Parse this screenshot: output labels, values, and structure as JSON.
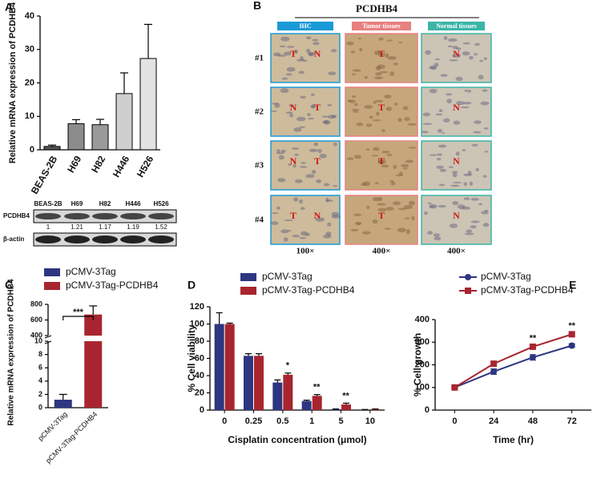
{
  "chart_data": [
    {
      "type": "bar",
      "panel": "A",
      "ylabel": "Relative mRNA expression of PCDHB4",
      "categories": [
        "BEAS-2B",
        "H69",
        "H82",
        "H446",
        "H526"
      ],
      "values": [
        1,
        7.8,
        7.5,
        16.8,
        27.3
      ],
      "errors": [
        0.4,
        1.2,
        1.6,
        6.2,
        10.2
      ],
      "colors": [
        "#555555",
        "#8c8c8c",
        "#9a9a9a",
        "#cfcfcf",
        "#e2e2e2"
      ],
      "ylim": [
        0,
        40
      ],
      "yticks": [
        0,
        10,
        20,
        30,
        40
      ]
    },
    {
      "type": "broken_bar",
      "panel": "C",
      "ylabel": "Relative mRNA expression of PCDHB4",
      "categories": [
        "pCMV-3Tag",
        "pCMV-3Tag-PCDHB4"
      ],
      "series": [
        {
          "name": "pCMV-3Tag",
          "color": "#2e3581",
          "values": [
            1.2,
            null
          ],
          "errors": [
            0.8,
            null
          ]
        },
        {
          "name": "pCMV-3Tag-PCDHB4",
          "color": "#a8252f",
          "values": [
            null,
            670
          ],
          "errors": [
            null,
            110
          ]
        }
      ],
      "segments": [
        {
          "ylim": [
            0,
            10
          ],
          "yticks": [
            0,
            2,
            4,
            6,
            8,
            10
          ]
        },
        {
          "ylim": [
            400,
            800
          ],
          "yticks": [
            400,
            600,
            800
          ]
        }
      ],
      "annotation": "***"
    },
    {
      "type": "grouped_bar",
      "panel": "D",
      "ylabel": "% Cell viability",
      "xlabel": "Cisplatin concentration (μmol)",
      "categories": [
        "0",
        "0.25",
        "0.5",
        "1",
        "5",
        "10"
      ],
      "series": [
        {
          "name": "pCMV-3Tag",
          "color": "#2e3581",
          "values": [
            100,
            63,
            32,
            10.5,
            1,
            0.5
          ],
          "errors": [
            13,
            2.5,
            3,
            1,
            0.3,
            0.2
          ]
        },
        {
          "name": "pCMV-3Tag-PCDHB4",
          "color": "#a8252f",
          "values": [
            100,
            63,
            41,
            16.5,
            6.5,
            1
          ],
          "errors": [
            1,
            2.5,
            2,
            1.5,
            1.5,
            0.3
          ]
        }
      ],
      "annotations": [
        {
          "text": "*",
          "category": "0.5"
        },
        {
          "text": "**",
          "category": "1"
        },
        {
          "text": "**",
          "category": "5"
        }
      ],
      "ylim": [
        0,
        120
      ],
      "yticks": [
        0,
        20,
        40,
        60,
        80,
        100,
        120
      ]
    },
    {
      "type": "line",
      "panel": "E",
      "ylabel": "% Cell growth",
      "xlabel": "Time (hr)",
      "x": [
        0,
        24,
        48,
        72
      ],
      "series": [
        {
          "name": "pCMV-3Tag",
          "color": "#2e3581",
          "marker": "circle",
          "values": [
            100,
            170,
            233,
            285
          ],
          "errors": [
            3,
            12,
            12,
            8
          ]
        },
        {
          "name": "pCMV-3Tag-PCDHB4",
          "color": "#a8252f",
          "marker": "square",
          "values": [
            100,
            205,
            280,
            335
          ],
          "errors": [
            3,
            10,
            5,
            5
          ]
        }
      ],
      "annotations": [
        {
          "text": "**",
          "x": 48
        },
        {
          "text": "**",
          "x": 72
        }
      ],
      "xlim": [
        -12,
        84
      ],
      "xticks": [
        0,
        24,
        48,
        72
      ],
      "ylim": [
        0,
        400
      ],
      "yticks": [
        0,
        100,
        200,
        300,
        400
      ]
    }
  ],
  "western_blot": {
    "lanes": [
      "BEAS-2B",
      "H69",
      "H82",
      "H446",
      "H526"
    ],
    "rows": [
      "PCDHB4",
      "β-actin"
    ],
    "ratios": [
      1,
      1.21,
      1.17,
      1.19,
      1.52
    ]
  },
  "ihc": {
    "panel": "B",
    "title": "PCDHB4",
    "columns": [
      "IHC",
      "Tumor tissues",
      "Normal tissues"
    ],
    "rows": [
      "#1",
      "#2",
      "#3",
      "#4"
    ],
    "magnifications": [
      "100×",
      "400×",
      "400×"
    ],
    "cell_labels": [
      [
        [
          "T",
          "N"
        ],
        [
          "T"
        ],
        [
          "N"
        ]
      ],
      [
        [
          "N",
          "T"
        ],
        [
          "T"
        ],
        [
          "N"
        ]
      ],
      [
        [
          "N",
          "T"
        ],
        [
          "T"
        ],
        [
          "N"
        ]
      ],
      [
        [
          "T",
          "N"
        ],
        [
          "T"
        ],
        [
          "N"
        ]
      ]
    ]
  }
}
